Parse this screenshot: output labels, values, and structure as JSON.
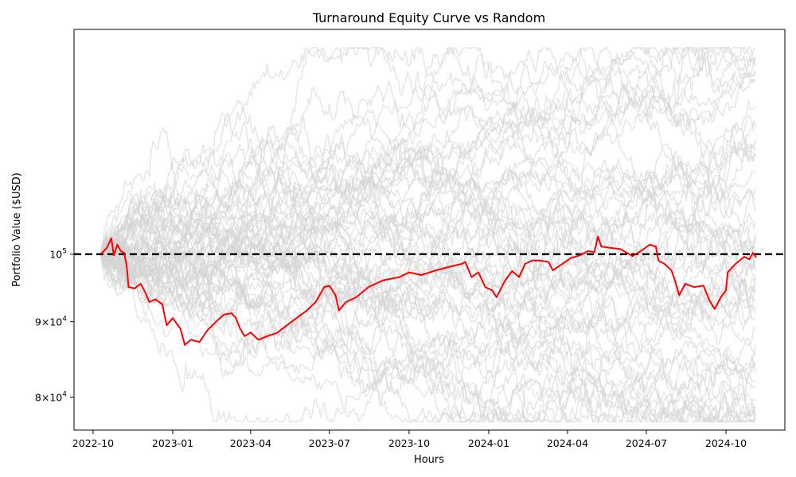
{
  "chart_data": {
    "type": "line",
    "title": "Turnaround Equity Curve vs Random",
    "xlabel": "Hours",
    "ylabel": "Portfolio Value ($USD)",
    "y_scale": "log",
    "xlim": [
      "2022-09-09",
      "2024-12-08"
    ],
    "ylim": [
      76000,
      142000
    ],
    "x_ticks": [
      {
        "date": "2022-10-01",
        "label": "2022-10"
      },
      {
        "date": "2023-01-01",
        "label": "2023-01"
      },
      {
        "date": "2023-04-01",
        "label": "2023-04"
      },
      {
        "date": "2023-07-01",
        "label": "2023-07"
      },
      {
        "date": "2023-10-01",
        "label": "2023-10"
      },
      {
        "date": "2024-01-01",
        "label": "2024-01"
      },
      {
        "date": "2024-04-01",
        "label": "2024-04"
      },
      {
        "date": "2024-07-01",
        "label": "2024-07"
      },
      {
        "date": "2024-10-01",
        "label": "2024-10"
      }
    ],
    "y_ticks": [
      {
        "value": 80000,
        "base": "8",
        "mult": "×10",
        "exp": "4"
      },
      {
        "value": 90000,
        "base": "9",
        "mult": "×10",
        "exp": "4"
      },
      {
        "value": 100000,
        "base": "10",
        "mult": "",
        "exp": "5"
      }
    ],
    "reference_line": {
      "value": 100000,
      "style": "dashed",
      "color": "#000000"
    },
    "colors": {
      "strategy": "#ff0000",
      "random": "#d3d3d3",
      "reference": "#000000"
    },
    "series": [
      {
        "role": "strategy",
        "color": "#ff0000",
        "points": [
          [
            "2022-10-10",
            100000
          ],
          [
            "2022-10-17",
            101000
          ],
          [
            "2022-10-22",
            102500
          ],
          [
            "2022-10-25",
            99800
          ],
          [
            "2022-10-29",
            101500
          ],
          [
            "2022-11-02",
            100500
          ],
          [
            "2022-11-06",
            100200
          ],
          [
            "2022-11-09",
            98000
          ],
          [
            "2022-11-11",
            95000
          ],
          [
            "2022-11-18",
            94800
          ],
          [
            "2022-11-25",
            95500
          ],
          [
            "2022-12-01",
            94000
          ],
          [
            "2022-12-05",
            92800
          ],
          [
            "2022-12-12",
            93200
          ],
          [
            "2022-12-20",
            92500
          ],
          [
            "2022-12-25",
            89500
          ],
          [
            "2023-01-01",
            90500
          ],
          [
            "2023-01-10",
            89000
          ],
          [
            "2023-01-15",
            86800
          ],
          [
            "2023-01-22",
            87500
          ],
          [
            "2023-02-01",
            87200
          ],
          [
            "2023-02-10",
            88800
          ],
          [
            "2023-02-20",
            90000
          ],
          [
            "2023-03-01",
            91000
          ],
          [
            "2023-03-10",
            91200
          ],
          [
            "2023-03-15",
            90500
          ],
          [
            "2023-03-20",
            89000
          ],
          [
            "2023-03-25",
            88000
          ],
          [
            "2023-04-01",
            88500
          ],
          [
            "2023-04-10",
            87500
          ],
          [
            "2023-04-20",
            88000
          ],
          [
            "2023-05-01",
            88400
          ],
          [
            "2023-05-15",
            89700
          ],
          [
            "2023-05-25",
            90600
          ],
          [
            "2023-06-05",
            91600
          ],
          [
            "2023-06-15",
            92800
          ],
          [
            "2023-06-25",
            95000
          ],
          [
            "2023-07-01",
            95200
          ],
          [
            "2023-07-08",
            93800
          ],
          [
            "2023-07-12",
            91600
          ],
          [
            "2023-07-20",
            92800
          ],
          [
            "2023-08-01",
            93500
          ],
          [
            "2023-08-15",
            95000
          ],
          [
            "2023-09-01",
            96000
          ],
          [
            "2023-09-20",
            96500
          ],
          [
            "2023-10-01",
            97200
          ],
          [
            "2023-10-15",
            96800
          ],
          [
            "2023-11-01",
            97500
          ],
          [
            "2023-11-15",
            98000
          ],
          [
            "2023-12-01",
            98500
          ],
          [
            "2023-12-05",
            98800
          ],
          [
            "2023-12-12",
            96500
          ],
          [
            "2023-12-20",
            97200
          ],
          [
            "2023-12-28",
            95000
          ],
          [
            "2024-01-05",
            94500
          ],
          [
            "2024-01-10",
            93500
          ],
          [
            "2024-01-20",
            96000
          ],
          [
            "2024-01-28",
            97400
          ],
          [
            "2024-02-05",
            96500
          ],
          [
            "2024-02-12",
            98500
          ],
          [
            "2024-02-20",
            99000
          ],
          [
            "2024-03-01",
            99000
          ],
          [
            "2024-03-10",
            98800
          ],
          [
            "2024-03-15",
            97500
          ],
          [
            "2024-03-25",
            98400
          ],
          [
            "2024-04-05",
            99400
          ],
          [
            "2024-04-15",
            99800
          ],
          [
            "2024-04-25",
            100500
          ],
          [
            "2024-05-02",
            100300
          ],
          [
            "2024-05-06",
            102800
          ],
          [
            "2024-05-10",
            101200
          ],
          [
            "2024-05-20",
            101000
          ],
          [
            "2024-06-01",
            100800
          ],
          [
            "2024-06-15",
            99700
          ],
          [
            "2024-06-25",
            100500
          ],
          [
            "2024-07-05",
            101500
          ],
          [
            "2024-07-12",
            101200
          ],
          [
            "2024-07-15",
            99000
          ],
          [
            "2024-07-22",
            98500
          ],
          [
            "2024-07-30",
            97500
          ],
          [
            "2024-08-03",
            96000
          ],
          [
            "2024-08-08",
            93800
          ],
          [
            "2024-08-15",
            95500
          ],
          [
            "2024-08-25",
            95000
          ],
          [
            "2024-09-05",
            95200
          ],
          [
            "2024-09-12",
            93000
          ],
          [
            "2024-09-18",
            91800
          ],
          [
            "2024-09-25",
            93500
          ],
          [
            "2024-10-01",
            94500
          ],
          [
            "2024-10-03",
            97200
          ],
          [
            "2024-10-12",
            98500
          ],
          [
            "2024-10-22",
            99600
          ],
          [
            "2024-10-28",
            99200
          ],
          [
            "2024-11-01",
            100200
          ],
          [
            "2024-11-05",
            99500
          ]
        ]
      }
    ]
  }
}
